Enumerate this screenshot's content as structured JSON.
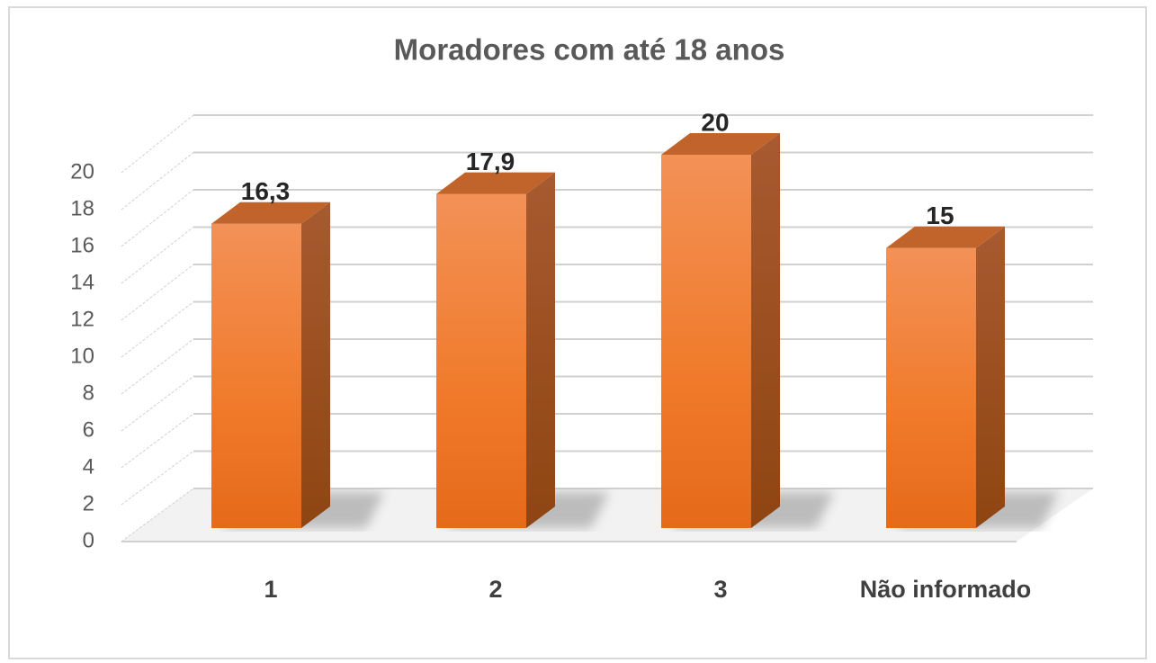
{
  "chart_data": {
    "type": "bar3d",
    "title": "Moradores com até 18 anos",
    "categories": [
      "1",
      "2",
      "3",
      "Não informado"
    ],
    "values": [
      16.3,
      17.9,
      20,
      15
    ],
    "value_labels": [
      "16,3",
      "17,9",
      "20",
      "15"
    ],
    "color": "#f07a2a",
    "ylim": [
      0,
      20
    ],
    "yticks": [
      0,
      2,
      4,
      6,
      8,
      10,
      12,
      14,
      16,
      18,
      20
    ],
    "grid": true
  }
}
